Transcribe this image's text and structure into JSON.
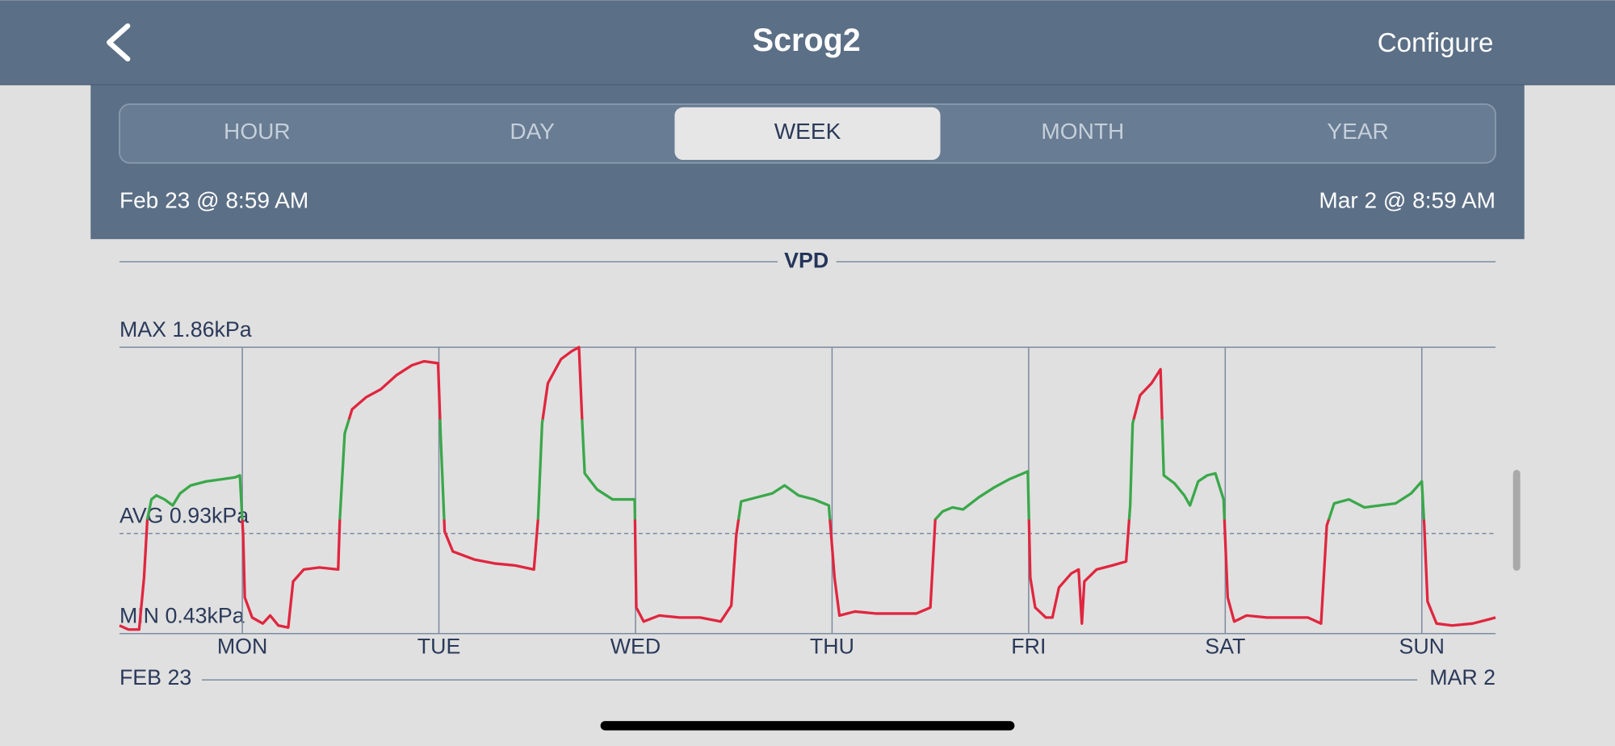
{
  "header": {
    "title": "Scrog2",
    "action": "Configure"
  },
  "tabs": [
    "HOUR",
    "DAY",
    "WEEK",
    "MONTH",
    "YEAR"
  ],
  "selected_tab": 2,
  "range": {
    "start": "Feb 23 @ 8:59 AM",
    "end": "Mar 2 @ 8:59 AM"
  },
  "chart_data": {
    "type": "line",
    "title": "VPD",
    "x": [
      0,
      1.1,
      2.4,
      3.0,
      3.4,
      3.9,
      4.5,
      5.5,
      6.5,
      7.4,
      8.7,
      10.6,
      12.4,
      14.1,
      14.7,
      15.1,
      15.3,
      16.2,
      17.5,
      18.4,
      19.4,
      20.6,
      21.2,
      22.5,
      24.4,
      26.7,
      26.9,
      27.5,
      28.4,
      30.1,
      31.9,
      33.8,
      35.7,
      37.2,
      38.9,
      39.2,
      39.7,
      40.7,
      43.3,
      45.8,
      48.3,
      50.6,
      51.1,
      51.6,
      52.3,
      53.9,
      55.2,
      56.1,
      56.5,
      56.8,
      58.3,
      60.2,
      62.9,
      63.1,
      64.0,
      65.9,
      68.4,
      70.9,
      73.4,
      74.7,
      75.3,
      75.9,
      77.8,
      79.7,
      81.2,
      82.9,
      84.8,
      86.6,
      87.3,
      87.9,
      89.8,
      92.3,
      94.8,
      97.3,
      99.0,
      99.6,
      100.5,
      101.7,
      103.0,
      104.9,
      106.8,
      108.6,
      110.9,
      111.2,
      111.8,
      113.1,
      113.9,
      114.7,
      116.2,
      117.1,
      117.5,
      117.8,
      119.3,
      121.2,
      122.9,
      123.4,
      123.7,
      124.6,
      126.0,
      127.1,
      127.5,
      128.8,
      130.0,
      130.7,
      131.7,
      132.8,
      133.8,
      134.8,
      135.3,
      136.1,
      137.6,
      140.1,
      142.6,
      145.1,
      146.7,
      147.4,
      148.3,
      150.1,
      152.0,
      153.9,
      155.8,
      157.7,
      159.0,
      159.3,
      159.7,
      160.8,
      162.7,
      165.2,
      167.1,
      168.0
    ],
    "values": [
      0.47,
      0.45,
      0.45,
      0.71,
      1.0,
      1.1,
      1.12,
      1.1,
      1.07,
      1.13,
      1.17,
      1.19,
      1.2,
      1.21,
      1.22,
      0.92,
      0.61,
      0.51,
      0.48,
      0.52,
      0.47,
      0.46,
      0.69,
      0.75,
      0.76,
      0.75,
      1.0,
      1.43,
      1.55,
      1.61,
      1.65,
      1.72,
      1.77,
      1.79,
      1.78,
      1.43,
      0.94,
      0.84,
      0.8,
      0.78,
      0.77,
      0.75,
      1.0,
      1.48,
      1.68,
      1.8,
      1.84,
      1.86,
      1.48,
      1.23,
      1.15,
      1.1,
      1.1,
      0.56,
      0.49,
      0.52,
      0.51,
      0.51,
      0.49,
      0.57,
      0.92,
      1.09,
      1.11,
      1.13,
      1.17,
      1.12,
      1.1,
      1.07,
      0.71,
      0.52,
      0.54,
      0.53,
      0.53,
      0.53,
      0.56,
      1.0,
      1.04,
      1.06,
      1.05,
      1.11,
      1.16,
      1.2,
      1.24,
      0.71,
      0.56,
      0.51,
      0.51,
      0.66,
      0.73,
      0.75,
      0.48,
      0.69,
      0.75,
      0.77,
      0.79,
      1.07,
      1.48,
      1.62,
      1.68,
      1.75,
      1.22,
      1.18,
      1.12,
      1.07,
      1.19,
      1.22,
      1.23,
      1.1,
      0.61,
      0.49,
      0.52,
      0.51,
      0.51,
      0.51,
      0.48,
      0.97,
      1.08,
      1.1,
      1.06,
      1.07,
      1.08,
      1.13,
      1.19,
      0.97,
      0.59,
      0.48,
      0.47,
      0.48,
      0.5,
      0.51
    ],
    "color": "#e0263f",
    "in_range_color": "#3aa84a",
    "band": [
      1.0,
      1.5
    ],
    "xlim": [
      0,
      168
    ],
    "ylim": [
      0.43,
      1.86
    ],
    "yticks": [
      {
        "value": 1.86,
        "label": "MAX 1.86kPa"
      },
      {
        "value": 0.43,
        "label": "MIN 0.43kPa"
      }
    ],
    "avg": {
      "value": 0.93,
      "label": "AVG 0.93kPa"
    },
    "xticks": [
      {
        "value": 15,
        "label": "MON"
      },
      {
        "value": 39,
        "label": "TUE"
      },
      {
        "value": 63,
        "label": "WED"
      },
      {
        "value": 87,
        "label": "THU"
      },
      {
        "value": 111,
        "label": "FRI"
      },
      {
        "value": 135,
        "label": "SAT"
      },
      {
        "value": 159,
        "label": "SUN"
      }
    ],
    "x_start_label": "FEB 23",
    "x_end_label": "MAR 2",
    "grid": true
  }
}
